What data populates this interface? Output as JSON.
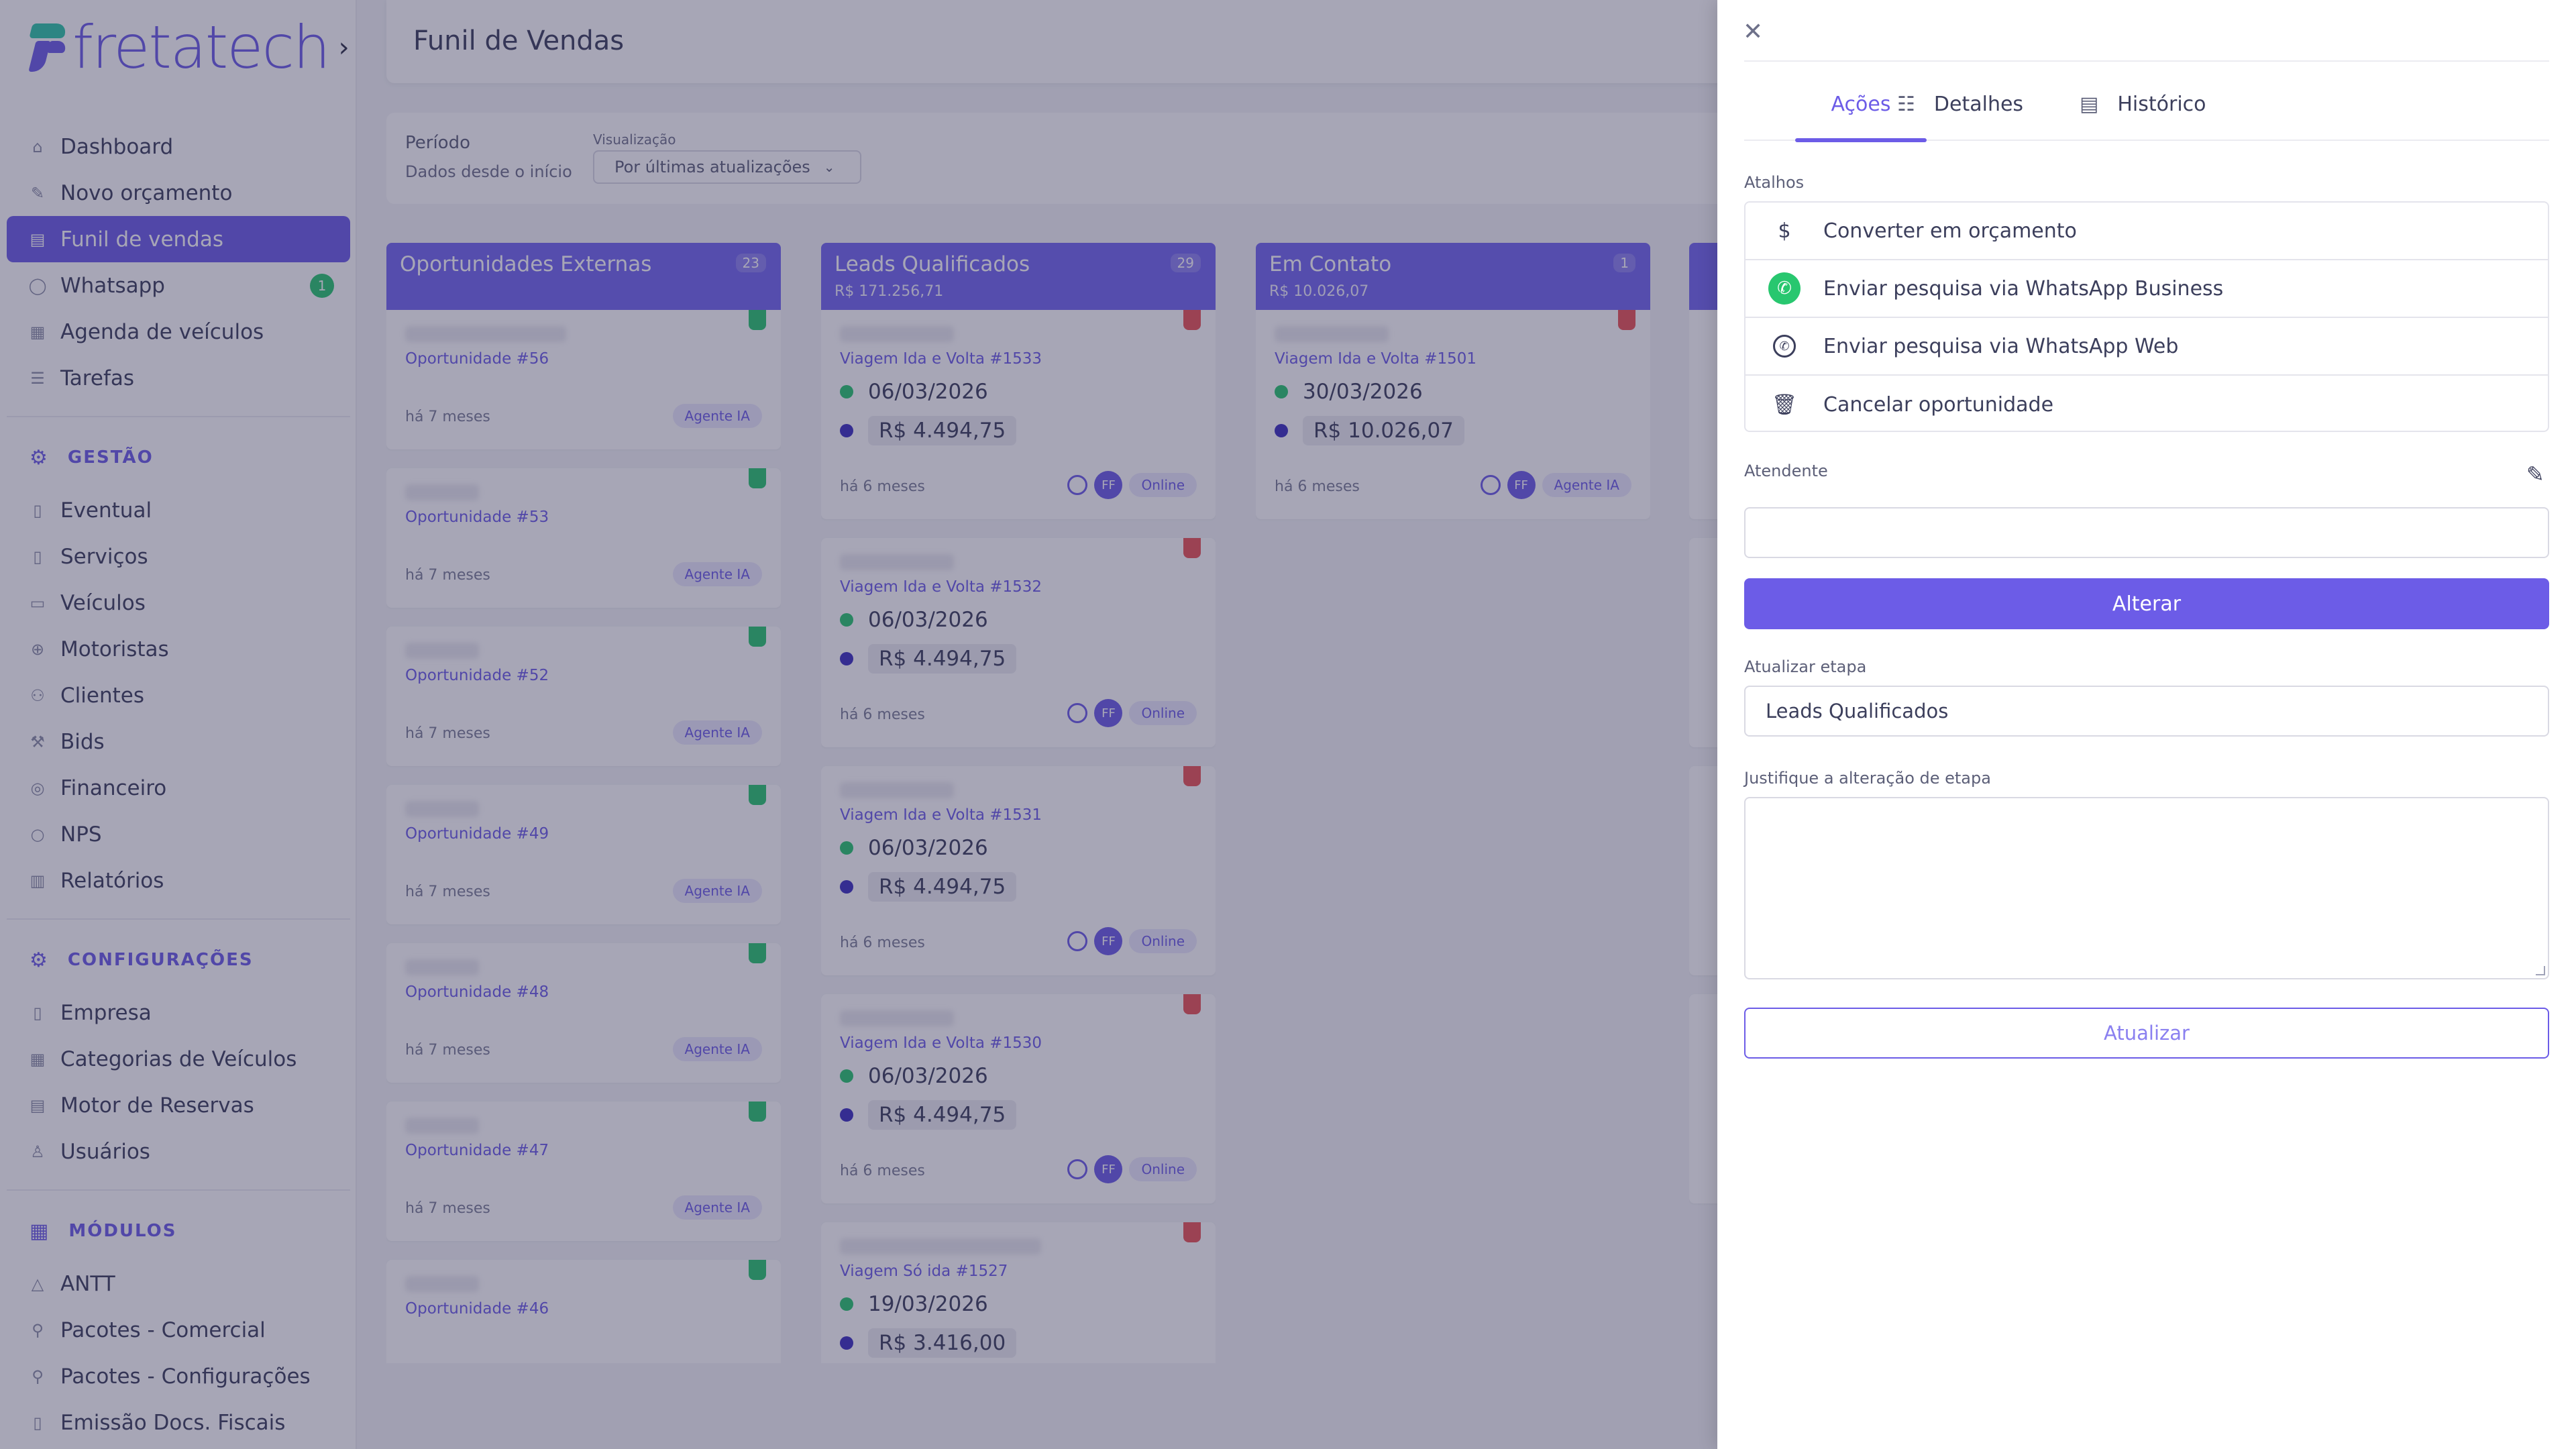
{
  "brand": {
    "name": "fretatech",
    "toggle_icon": "chevron-right-icon"
  },
  "sidebar": {
    "main": [
      {
        "label": "Dashboard",
        "icon": "home-icon"
      },
      {
        "label": "Novo orçamento",
        "icon": "edit-icon"
      },
      {
        "label": "Funil de vendas",
        "icon": "funnel-icon",
        "active": true
      },
      {
        "label": "Whatsapp",
        "icon": "whatsapp-icon",
        "badge": "1"
      },
      {
        "label": "Agenda de veículos",
        "icon": "calendar-icon"
      },
      {
        "label": "Tarefas",
        "icon": "list-icon"
      }
    ],
    "gestao_title": "GESTÃO",
    "gestao": [
      {
        "label": "Eventual",
        "icon": "document-icon"
      },
      {
        "label": "Serviços",
        "icon": "clipboard-icon"
      },
      {
        "label": "Veículos",
        "icon": "bus-icon"
      },
      {
        "label": "Motoristas",
        "icon": "steering-wheel-icon"
      },
      {
        "label": "Clientes",
        "icon": "users-icon"
      },
      {
        "label": "Bids",
        "icon": "gavel-icon"
      },
      {
        "label": "Financeiro",
        "icon": "coin-icon"
      },
      {
        "label": "NPS",
        "icon": "chat-icon"
      },
      {
        "label": "Relatórios",
        "icon": "report-icon"
      }
    ],
    "config_title": "CONFIGURAÇÕES",
    "config": [
      {
        "label": "Empresa",
        "icon": "building-icon"
      },
      {
        "label": "Categorias de Veículos",
        "icon": "grid-icon"
      },
      {
        "label": "Motor de Reservas",
        "icon": "table-icon"
      },
      {
        "label": "Usuários",
        "icon": "user-icon"
      }
    ],
    "modulos_title": "MÓDULOS",
    "modulos": [
      {
        "label": "ANTT",
        "icon": "triangle-icon"
      },
      {
        "label": "Pacotes - Comercial",
        "icon": "package-icon"
      },
      {
        "label": "Pacotes - Configurações",
        "icon": "package-settings-icon"
      },
      {
        "label": "Emissão Docs. Fiscais",
        "icon": "receipt-icon"
      }
    ]
  },
  "header": {
    "title": "Funil de Vendas"
  },
  "filters": {
    "period_label": "Período",
    "period_value": "Dados desde o início",
    "view_label": "Visualização",
    "view_value": "Por últimas atualizações"
  },
  "columns": [
    {
      "title": "Oportunidades Externas",
      "count": "23",
      "subtotal": "",
      "cards": [
        {
          "name": "Oportunidade #56",
          "age": "há 7 meses",
          "tag": "Agente IA"
        },
        {
          "name": "Oportunidade #53",
          "age": "há 7 meses",
          "tag": "Agente IA"
        },
        {
          "name": "Oportunidade #52",
          "age": "há 7 meses",
          "tag": "Agente IA"
        },
        {
          "name": "Oportunidade #49",
          "age": "há 7 meses",
          "tag": "Agente IA"
        },
        {
          "name": "Oportunidade #48",
          "age": "há 7 meses",
          "tag": "Agente IA"
        },
        {
          "name": "Oportunidade #47",
          "age": "há 7 meses",
          "tag": "Agente IA"
        },
        {
          "name": "Oportunidade #46",
          "age": "",
          "tag": ""
        }
      ]
    },
    {
      "title": "Leads Qualificados",
      "count": "29",
      "subtotal": "R$ 171.256,71",
      "cards": [
        {
          "name": "Viagem Ida e Volta #1533",
          "date": "06/03/2026",
          "price": "R$ 4.494,75",
          "age": "há 6 meses",
          "avatar": "FF",
          "status": "Online"
        },
        {
          "name": "Viagem Ida e Volta #1532",
          "date": "06/03/2026",
          "price": "R$ 4.494,75",
          "age": "há 6 meses",
          "avatar": "FF",
          "status": "Online"
        },
        {
          "name": "Viagem Ida e Volta #1531",
          "date": "06/03/2026",
          "price": "R$ 4.494,75",
          "age": "há 6 meses",
          "avatar": "FF",
          "status": "Online"
        },
        {
          "name": "Viagem Ida e Volta #1530",
          "date": "06/03/2026",
          "price": "R$ 4.494,75",
          "age": "há 6 meses",
          "avatar": "FF",
          "status": "Online"
        },
        {
          "name": "Viagem Só ida #1527",
          "date": "19/03/2026",
          "price": "R$ 3.416,00",
          "age": "",
          "avatar": "",
          "status": ""
        }
      ]
    },
    {
      "title": "Em Contato",
      "count": "1",
      "subtotal": "R$ 10.026,07",
      "cards": [
        {
          "name": "Viagem Ida e Volta #1501",
          "date": "30/03/2026",
          "price": "R$ 10.026,07",
          "age": "há 6 meses",
          "avatar": "FF",
          "status": "Agente IA"
        }
      ]
    }
  ],
  "drawer": {
    "tabs": [
      {
        "label": "Ações",
        "icon": ""
      },
      {
        "label": "Detalhes",
        "icon": "details-list-icon"
      },
      {
        "label": "Histórico",
        "icon": "document-icon"
      }
    ],
    "shortcuts_label": "Atalhos",
    "shortcuts": [
      {
        "label": "Converter em orçamento",
        "icon": "dollar-icon"
      },
      {
        "label": "Enviar pesquisa via WhatsApp Business",
        "icon": "whatsapp-business-icon"
      },
      {
        "label": "Enviar pesquisa via WhatsApp Web",
        "icon": "whatsapp-icon"
      },
      {
        "label": "Cancelar oportunidade",
        "icon": "trash-icon"
      }
    ],
    "attendant_label": "Atendente",
    "attendant_value": "",
    "alterar_label": "Alterar",
    "stage_label": "Atualizar etapa",
    "stage_value": "Leads Qualificados",
    "justify_label": "Justifique a alteração de etapa",
    "justify_value": "",
    "update_label": "Atualizar"
  },
  "colors": {
    "accent": "#6c5ce7",
    "green": "#28c76f",
    "red": "#ea5455"
  }
}
